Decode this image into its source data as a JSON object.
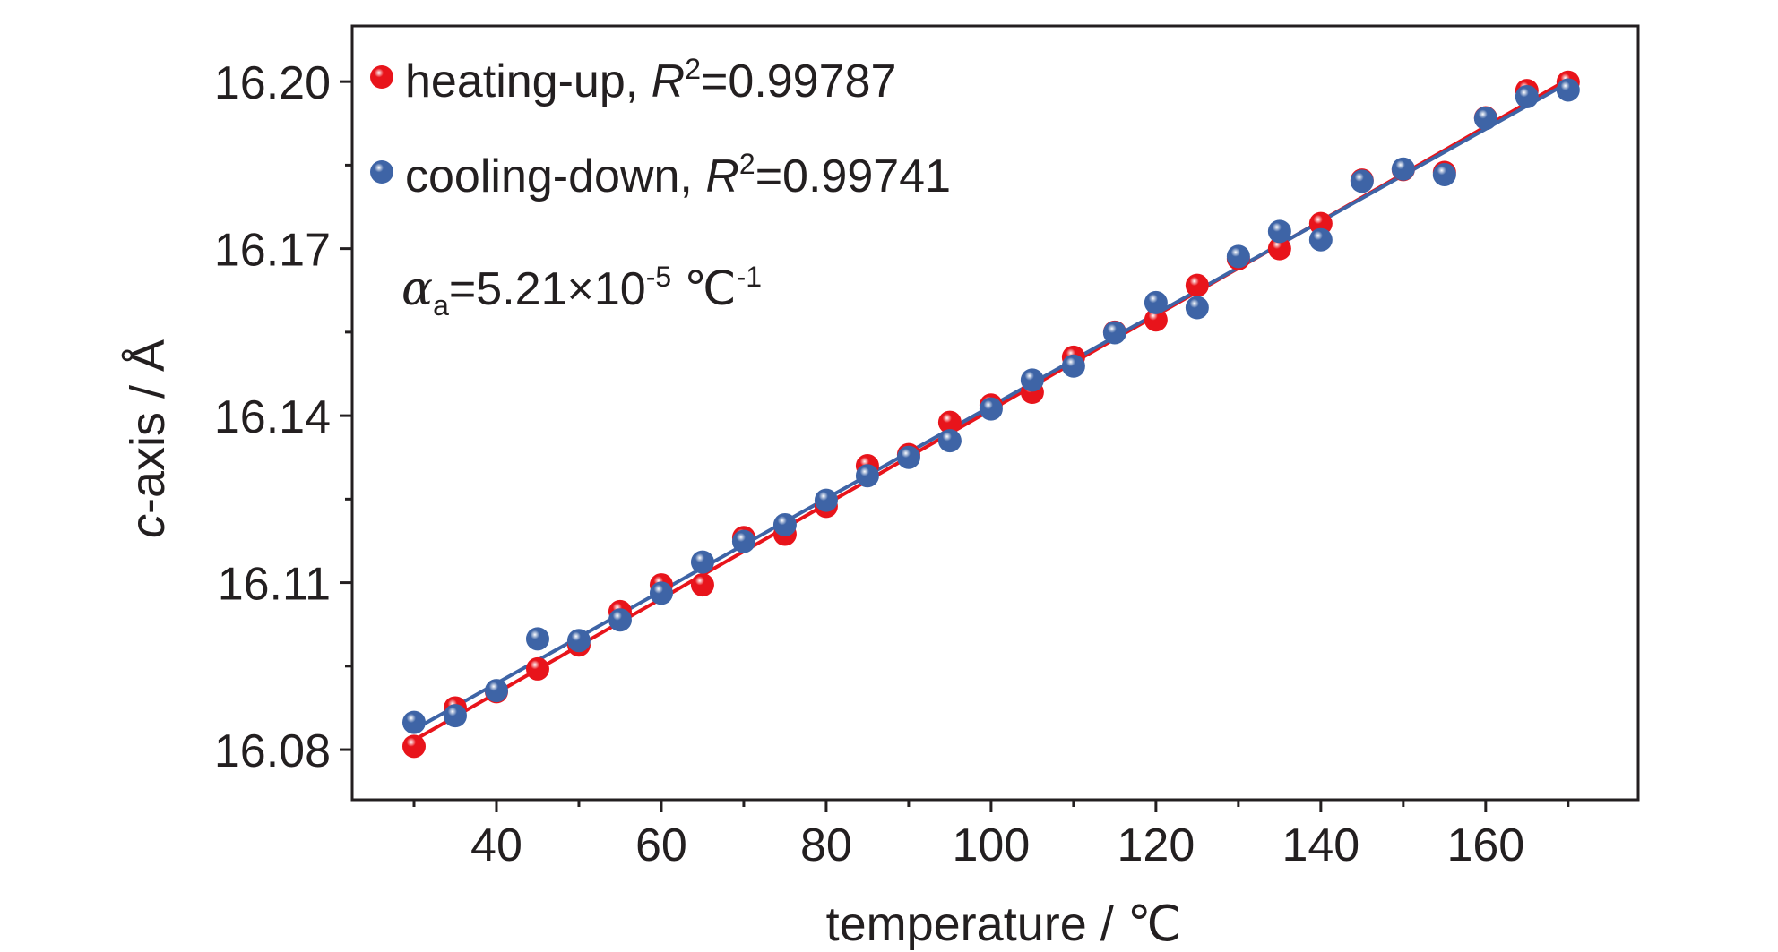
{
  "chart_data": {
    "type": "scatter",
    "xlabel": "temperature / ℃",
    "ylabel": {
      "var": "c",
      "rest": "-axis / Å"
    },
    "xlim": [
      22.5,
      178.5
    ],
    "ylim": [
      16.071,
      16.21
    ],
    "x_ticks": [
      40,
      60,
      80,
      100,
      120,
      140,
      160
    ],
    "x_tick_labels": [
      "40",
      "60",
      "80",
      "100",
      "120",
      "140",
      "160"
    ],
    "y_ticks": [
      16.08,
      16.11,
      16.14,
      16.17,
      16.2
    ],
    "y_tick_labels": [
      "16.08",
      "16.11",
      "16.14",
      "16.17",
      "16.20"
    ],
    "x_minor_step": 10,
    "y_minor_step": 0.015,
    "legend_position": "top-left",
    "grid": false,
    "series": [
      {
        "name": "heating-up",
        "r2_label": "R",
        "r2_sup": "2",
        "r2_value": "=0.99787",
        "color": "#e8141b",
        "x": [
          30,
          35,
          40,
          45,
          50,
          55,
          60,
          65,
          70,
          75,
          80,
          85,
          90,
          95,
          100,
          105,
          110,
          115,
          120,
          125,
          130,
          135,
          140,
          145,
          150,
          155,
          160,
          165,
          170
        ],
        "y": [
          16.0806,
          16.0875,
          16.0904,
          16.0945,
          16.0988,
          16.1048,
          16.1096,
          16.1096,
          16.1181,
          16.1187,
          16.1237,
          16.131,
          16.133,
          16.1388,
          16.1419,
          16.1442,
          16.1505,
          16.155,
          16.1572,
          16.1634,
          16.1682,
          16.17,
          16.1745,
          16.1823,
          16.1842,
          16.1837,
          16.1935,
          16.1984,
          16.1999
        ],
        "fit": {
          "x": [
            30,
            170
          ],
          "y": [
            16.0817,
            16.2004
          ]
        }
      },
      {
        "name": "cooling-down",
        "r2_label": "R",
        "r2_sup": "2",
        "r2_value": "=0.99741",
        "color": "#3e64a6",
        "x": [
          30,
          35,
          40,
          45,
          50,
          55,
          60,
          65,
          70,
          75,
          80,
          85,
          90,
          95,
          100,
          105,
          110,
          115,
          120,
          125,
          130,
          135,
          140,
          145,
          150,
          155,
          160,
          165,
          170
        ],
        "y": [
          16.0849,
          16.0861,
          16.0906,
          16.0999,
          16.0996,
          16.1033,
          16.1081,
          16.1137,
          16.1174,
          16.1204,
          16.1248,
          16.1292,
          16.1325,
          16.1355,
          16.1412,
          16.1464,
          16.1489,
          16.1549,
          16.1603,
          16.1594,
          16.1686,
          16.1731,
          16.1716,
          16.1821,
          16.1843,
          16.1833,
          16.1934,
          16.1973,
          16.1985
        ],
        "fit": {
          "x": [
            30,
            170
          ],
          "y": [
            16.0836,
            16.1998
          ]
        }
      }
    ],
    "annotation": {
      "symbol": "α",
      "sub": "a",
      "value": "=5.21×10",
      "exp": "-5",
      "unit": "℃",
      "unit_exp": "-1"
    }
  }
}
